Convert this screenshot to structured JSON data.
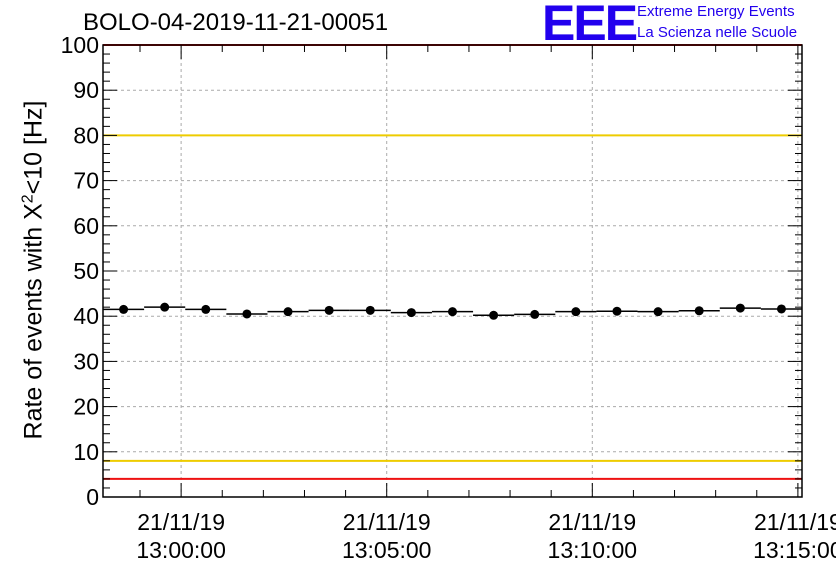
{
  "title": "BOLO-04-2019-11-21-00051",
  "logo": {
    "mark": "EEE",
    "line1": "Extreme Energy Events",
    "line2": "La Scienza nelle Scuole",
    "color": "#2200ee"
  },
  "chart_data": {
    "type": "scatter",
    "title": "BOLO-04-2019-11-21-00051",
    "ylabel_main": "Rate of events with X",
    "ylabel_sup": "2",
    "ylabel_tail": "<10 [Hz]",
    "xlabel": "",
    "ylim": [
      0,
      100
    ],
    "xlim_minutes": [
      -1.9,
      15.1
    ],
    "y_ticks": [
      0,
      10,
      20,
      30,
      40,
      50,
      60,
      70,
      80,
      90,
      100
    ],
    "x_ticks": [
      {
        "minute": 0,
        "date": "21/11/19",
        "time": "13:00:00"
      },
      {
        "minute": 5,
        "date": "21/11/19",
        "time": "13:05:00"
      },
      {
        "minute": 10,
        "date": "21/11/19",
        "time": "13:10:00"
      },
      {
        "minute": 15,
        "date": "21/11/19",
        "time": "13:15:00"
      }
    ],
    "grid": true,
    "reference_lines": [
      {
        "y": 100,
        "color": "#ee1111"
      },
      {
        "y": 80,
        "color": "#eecc00"
      },
      {
        "y": 8,
        "color": "#eecc00"
      },
      {
        "y": 4,
        "color": "#ee1111"
      }
    ],
    "series": [
      {
        "x_minutes": [
          -1.4,
          -0.4,
          0.6,
          1.6,
          2.6,
          3.6,
          4.6,
          5.6,
          6.6,
          7.6,
          8.6,
          9.6,
          10.6,
          11.6,
          12.6,
          13.6,
          14.6
        ],
        "bin_width_minutes": 1.0,
        "values": [
          41.5,
          42.0,
          41.5,
          40.5,
          41.0,
          41.3,
          41.3,
          40.8,
          41.0,
          40.2,
          40.4,
          41.0,
          41.1,
          41.0,
          41.2,
          41.8,
          41.6
        ],
        "color": "#000000"
      }
    ]
  }
}
